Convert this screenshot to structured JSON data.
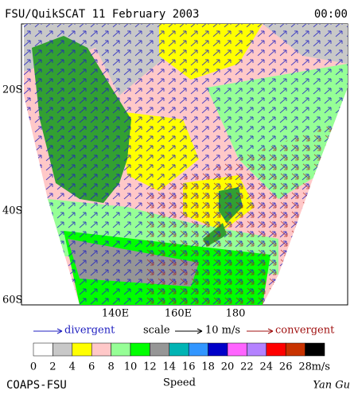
{
  "header": {
    "title": "FSU/QuikSCAT  11 February 2003",
    "time": "00:00"
  },
  "map": {
    "lat_labels": [
      "20S",
      "40S",
      "60S"
    ],
    "lon_labels": [
      "140E",
      "160E",
      "180"
    ]
  },
  "legend": {
    "divergent": "divergent",
    "scale": "scale",
    "scale_value": "10 m/s",
    "convergent": "convergent"
  },
  "colorbar": {
    "ticks": [
      0,
      2,
      4,
      6,
      8,
      10,
      12,
      14,
      16,
      18,
      20,
      22,
      24,
      26,
      28
    ],
    "unit": "m/s",
    "label": "Speed",
    "colors": [
      "#ffffff",
      "#c8c8c8",
      "#ffff00",
      "#ffc8c8",
      "#96ff96",
      "#00ff00",
      "#969696",
      "#00b4b4",
      "#3296ff",
      "#0000c8",
      "#ff64ff",
      "#b482ff",
      "#ff0000",
      "#c83200",
      "#000000"
    ]
  },
  "footer": {
    "left": "COAPS-FSU",
    "right": "Yan Gu"
  }
}
